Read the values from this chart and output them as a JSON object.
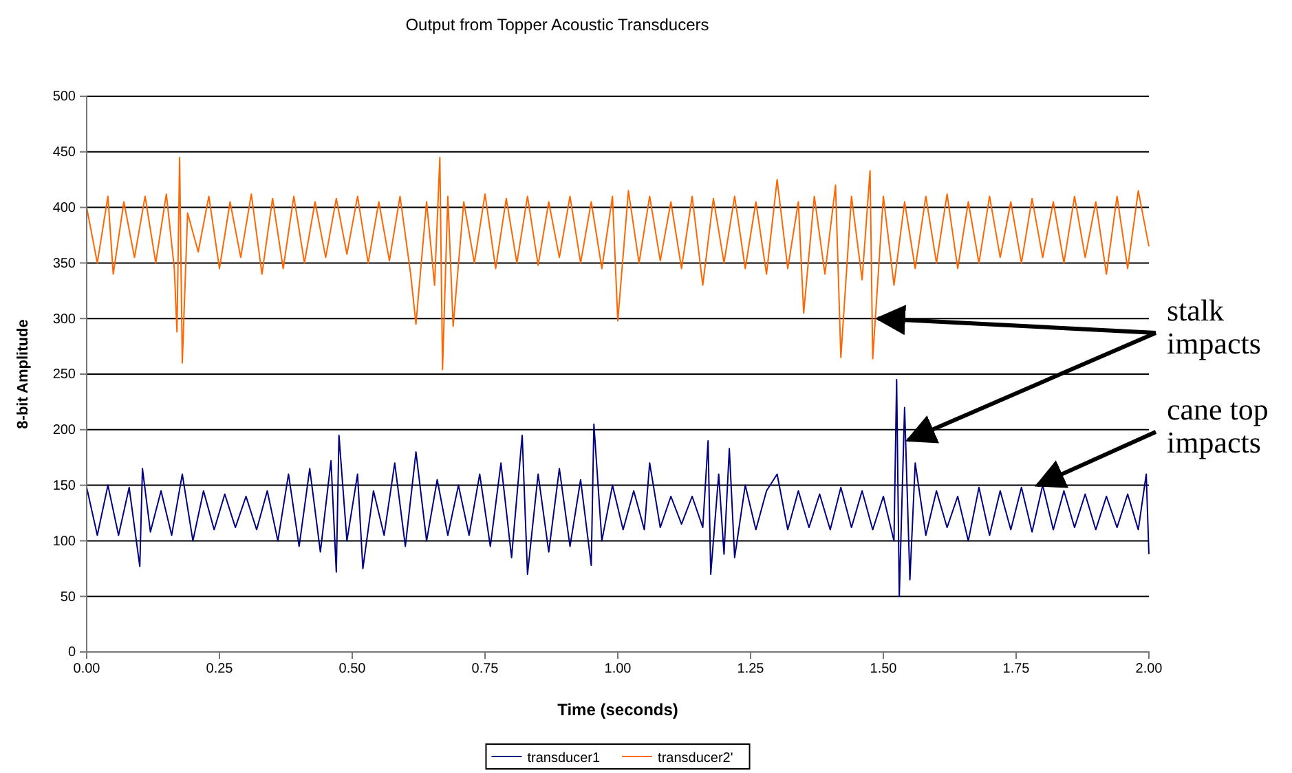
{
  "chart_data": {
    "type": "line",
    "title": "Output from Topper Acoustic Transducers",
    "xlabel": "Time (seconds)",
    "ylabel": "8-bit Amplitude",
    "xlim": [
      0,
      2
    ],
    "xticks": [
      {
        "value": 0,
        "label": "0.00"
      },
      {
        "value": 0.25,
        "label": "0.25"
      },
      {
        "value": 0.5,
        "label": "0.50"
      },
      {
        "value": 0.75,
        "label": "0.75"
      },
      {
        "value": 1,
        "label": "1.00"
      },
      {
        "value": 1.25,
        "label": "1.25"
      },
      {
        "value": 1.5,
        "label": "1.50"
      },
      {
        "value": 1.75,
        "label": "1.75"
      },
      {
        "value": 2,
        "label": "2.00"
      }
    ],
    "ylim": [
      0,
      500
    ],
    "yticks": [
      0,
      50,
      100,
      150,
      200,
      250,
      300,
      350,
      400,
      450,
      500
    ],
    "grid": "y",
    "legend": "bottom",
    "marker": "none",
    "line_style": "solid",
    "annotations": [
      {
        "text": "stalk\nimpacts",
        "x": 1.49,
        "y": 300
      },
      {
        "text": "cane top\nimpacts",
        "x": 1.79,
        "y": 150
      }
    ],
    "series": [
      {
        "name": "transducer1",
        "color": "#000080",
        "x": [
          0,
          0.02,
          0.04,
          0.06,
          0.08,
          0.1,
          0.105,
          0.12,
          0.14,
          0.16,
          0.18,
          0.2,
          0.22,
          0.24,
          0.26,
          0.28,
          0.3,
          0.32,
          0.34,
          0.36,
          0.38,
          0.4,
          0.42,
          0.44,
          0.46,
          0.47,
          0.475,
          0.49,
          0.51,
          0.52,
          0.54,
          0.56,
          0.58,
          0.6,
          0.62,
          0.64,
          0.66,
          0.68,
          0.7,
          0.72,
          0.74,
          0.76,
          0.78,
          0.8,
          0.82,
          0.83,
          0.85,
          0.87,
          0.89,
          0.91,
          0.93,
          0.95,
          0.955,
          0.97,
          0.99,
          1.01,
          1.03,
          1.05,
          1.06,
          1.08,
          1.1,
          1.12,
          1.14,
          1.16,
          1.17,
          1.175,
          1.19,
          1.2,
          1.21,
          1.22,
          1.24,
          1.26,
          1.28,
          1.3,
          1.32,
          1.34,
          1.36,
          1.38,
          1.4,
          1.42,
          1.44,
          1.46,
          1.48,
          1.5,
          1.52,
          1.525,
          1.53,
          1.54,
          1.55,
          1.56,
          1.58,
          1.6,
          1.62,
          1.64,
          1.66,
          1.68,
          1.7,
          1.72,
          1.74,
          1.76,
          1.78,
          1.8,
          1.82,
          1.84,
          1.86,
          1.88,
          1.9,
          1.92,
          1.94,
          1.96,
          1.98,
          1.995,
          2
        ],
        "values": [
          148,
          105,
          150,
          105,
          148,
          77,
          165,
          108,
          145,
          105,
          160,
          100,
          145,
          110,
          142,
          112,
          140,
          110,
          145,
          100,
          160,
          95,
          165,
          90,
          172,
          72,
          195,
          100,
          160,
          75,
          145,
          105,
          170,
          95,
          180,
          100,
          155,
          105,
          150,
          105,
          160,
          95,
          170,
          85,
          195,
          70,
          160,
          90,
          165,
          95,
          155,
          78,
          205,
          100,
          150,
          110,
          145,
          110,
          170,
          112,
          140,
          115,
          140,
          112,
          190,
          70,
          160,
          88,
          183,
          85,
          150,
          110,
          145,
          160,
          110,
          145,
          112,
          142,
          110,
          148,
          112,
          145,
          110,
          140,
          100,
          245,
          50,
          220,
          65,
          170,
          105,
          145,
          112,
          140,
          100,
          148,
          105,
          145,
          110,
          148,
          108,
          150,
          110,
          145,
          112,
          142,
          110,
          140,
          112,
          142,
          110,
          160,
          88
        ]
      },
      {
        "name": "transducer2'",
        "color": "#ff6600",
        "x": [
          0,
          0.02,
          0.04,
          0.05,
          0.07,
          0.09,
          0.11,
          0.13,
          0.15,
          0.165,
          0.17,
          0.175,
          0.18,
          0.19,
          0.21,
          0.23,
          0.25,
          0.27,
          0.29,
          0.31,
          0.33,
          0.35,
          0.37,
          0.39,
          0.41,
          0.43,
          0.45,
          0.47,
          0.49,
          0.51,
          0.53,
          0.55,
          0.57,
          0.59,
          0.61,
          0.62,
          0.64,
          0.655,
          0.665,
          0.67,
          0.68,
          0.69,
          0.71,
          0.73,
          0.75,
          0.77,
          0.79,
          0.81,
          0.83,
          0.85,
          0.87,
          0.89,
          0.91,
          0.93,
          0.95,
          0.97,
          0.99,
          1,
          1.02,
          1.04,
          1.06,
          1.08,
          1.1,
          1.12,
          1.14,
          1.16,
          1.18,
          1.2,
          1.22,
          1.24,
          1.26,
          1.28,
          1.3,
          1.32,
          1.34,
          1.35,
          1.37,
          1.39,
          1.41,
          1.42,
          1.44,
          1.46,
          1.475,
          1.48,
          1.5,
          1.52,
          1.54,
          1.56,
          1.58,
          1.6,
          1.62,
          1.64,
          1.66,
          1.68,
          1.7,
          1.72,
          1.74,
          1.76,
          1.78,
          1.8,
          1.82,
          1.84,
          1.86,
          1.88,
          1.9,
          1.92,
          1.94,
          1.96,
          1.98,
          2
        ],
        "values": [
          400,
          350,
          410,
          340,
          405,
          355,
          410,
          350,
          412,
          345,
          288,
          445,
          260,
          395,
          360,
          410,
          345,
          405,
          355,
          412,
          340,
          408,
          345,
          410,
          350,
          405,
          355,
          408,
          358,
          410,
          350,
          405,
          352,
          410,
          340,
          295,
          405,
          330,
          445,
          254,
          410,
          293,
          405,
          350,
          412,
          345,
          408,
          350,
          410,
          348,
          405,
          355,
          410,
          350,
          405,
          345,
          410,
          298,
          415,
          350,
          410,
          352,
          405,
          345,
          410,
          330,
          408,
          350,
          410,
          345,
          405,
          340,
          425,
          345,
          405,
          305,
          410,
          340,
          420,
          265,
          410,
          335,
          433,
          264,
          410,
          330,
          405,
          345,
          410,
          350,
          412,
          345,
          405,
          350,
          410,
          355,
          405,
          350,
          408,
          355,
          405,
          350,
          410,
          355,
          405,
          340,
          410,
          345,
          415,
          365
        ]
      }
    ]
  }
}
